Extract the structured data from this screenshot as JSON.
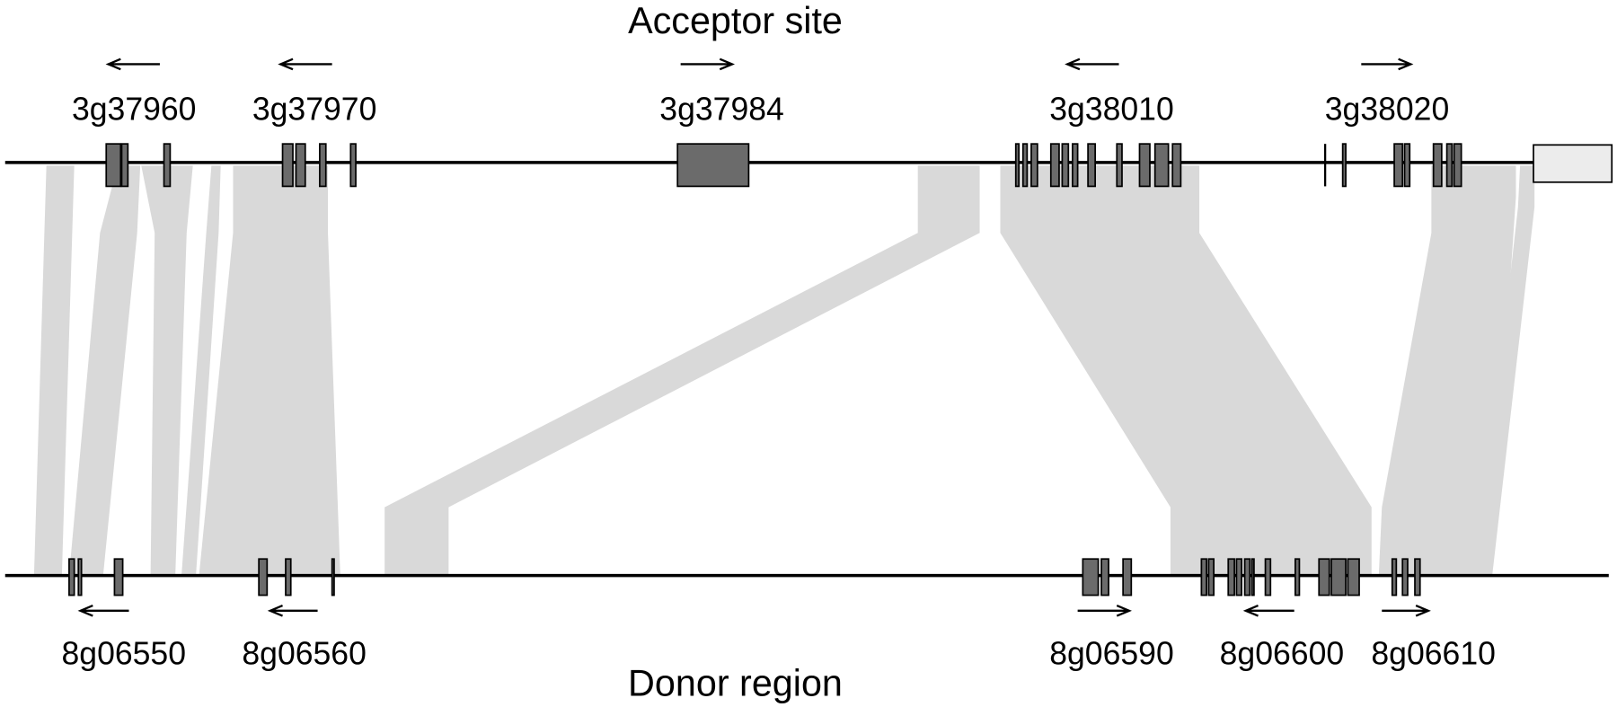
{
  "acceptor": {
    "label": "Acceptor site",
    "genes": [
      "3g37960",
      "3g37970",
      "3g37984",
      "3g38010",
      "3g38020"
    ]
  },
  "donor": {
    "label": "Donor region",
    "genes": [
      "8g06550",
      "8g06560",
      "8g06590",
      "8g06600",
      "8g06610"
    ]
  }
}
